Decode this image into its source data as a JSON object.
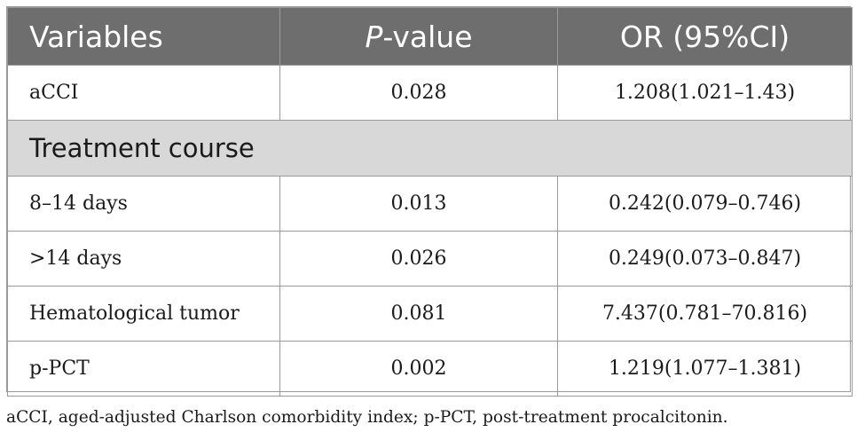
{
  "table": {
    "headers": {
      "variables": "Variables",
      "p_value_italic": "P",
      "p_value_rest": "-value",
      "or": "OR (95%CI)"
    },
    "rows": [
      {
        "variable": "aCCI",
        "p": "0.028",
        "or": "1.208(1.021–1.43)"
      },
      {
        "section": "Treatment course"
      },
      {
        "variable": "8–14 days",
        "p": "0.013",
        "or": "0.242(0.079–0.746)"
      },
      {
        "variable": ">14 days",
        "p": "0.026",
        "or": "0.249(0.073–0.847)"
      },
      {
        "variable": "Hematological tumor",
        "p": "0.081",
        "or": "7.437(0.781–70.816)"
      },
      {
        "variable": "p-PCT",
        "p": "0.002",
        "or": "1.219(1.077–1.381)"
      }
    ]
  },
  "footnote": "aCCI, aged-adjusted Charlson comorbidity index; p-PCT, post-treatment procalcitonin."
}
